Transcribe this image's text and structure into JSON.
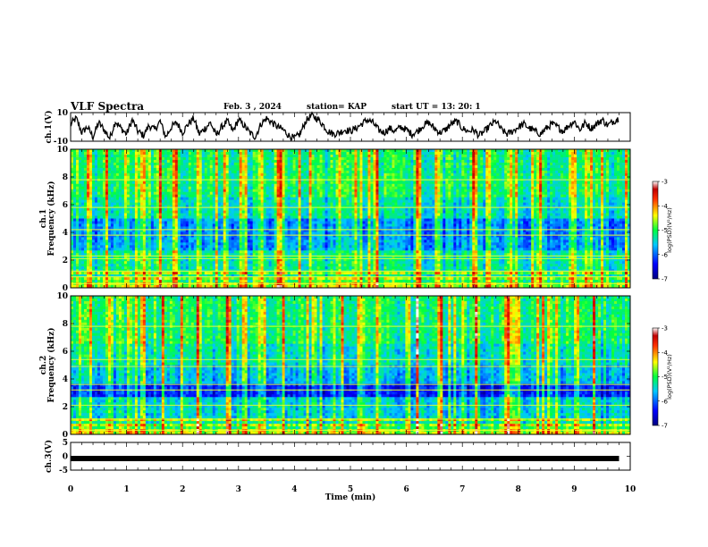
{
  "header": {
    "title": "VLF Spectra",
    "date": "Feb. 3 , 2024",
    "station": "station= KAP",
    "start": "start UT = 13: 20: 1"
  },
  "chart_data": [
    {
      "type": "line",
      "name": "waveform-ch1",
      "ylabel": "ch.1(V)",
      "ylim": [
        -10,
        10
      ],
      "yticks": [
        "10",
        "-10"
      ],
      "xlim": [
        0,
        10
      ],
      "x": [
        0.0,
        0.1,
        0.2,
        0.3,
        0.4,
        0.5,
        0.6,
        0.7,
        0.8,
        0.9,
        1.0,
        1.1,
        1.2,
        1.3,
        1.4,
        1.5,
        1.6,
        1.7,
        1.8,
        1.9,
        2.0,
        2.1,
        2.2,
        2.3,
        2.4,
        2.5,
        2.6,
        2.7,
        2.8,
        2.9,
        3.0,
        3.1,
        3.2,
        3.3,
        3.4,
        3.5,
        3.6,
        3.7,
        3.8,
        3.9,
        4.0,
        4.1,
        4.2,
        4.3,
        4.4,
        4.5,
        4.6,
        4.7,
        4.8,
        4.9,
        5.0,
        5.1,
        5.2,
        5.3,
        5.4,
        5.5,
        5.6,
        5.7,
        5.8,
        5.9,
        6.0,
        6.1,
        6.2,
        6.3,
        6.4,
        6.5,
        6.6,
        6.7,
        6.8,
        6.9,
        7.0,
        7.1,
        7.2,
        7.3,
        7.4,
        7.5,
        7.6,
        7.7,
        7.8,
        7.9,
        8.0,
        8.1,
        8.2,
        8.3,
        8.4,
        8.5,
        8.6,
        8.7,
        8.8,
        8.9,
        9.0,
        9.1,
        9.2,
        9.3,
        9.4,
        9.5,
        9.6,
        9.7,
        9.8
      ],
      "values": [
        2,
        6,
        -4,
        0,
        -7,
        3,
        -2,
        -8,
        4,
        -1,
        -5,
        5,
        -3,
        -6,
        1,
        -2,
        4,
        -7,
        0,
        3,
        -4,
        2,
        6,
        -5,
        -1,
        3,
        -6,
        0,
        4,
        -3,
        5,
        1,
        -4,
        -7,
        2,
        6,
        3,
        0,
        -2,
        -6,
        -8,
        -5,
        4,
        8,
        6,
        2,
        -3,
        -5,
        -4,
        -2,
        -3,
        -1,
        2,
        5,
        3,
        -2,
        -4,
        -1,
        -3,
        0,
        -2,
        -5,
        -3,
        1,
        3,
        -1,
        -4,
        -2,
        2,
        4,
        -1,
        -3,
        -2,
        -6,
        -3,
        1,
        4,
        -2,
        -5,
        -3,
        0,
        2,
        -1,
        -3,
        -5,
        -1,
        2,
        0,
        -3,
        1,
        4,
        -2,
        3,
        -1,
        2,
        5,
        1,
        4,
        6
      ]
    },
    {
      "type": "heatmap",
      "name": "spectrogram-ch1",
      "ylabel": "ch.1 Frequency (kHz)",
      "xlim": [
        0,
        10
      ],
      "ylim": [
        0,
        10
      ],
      "yticks": [
        "0",
        "2",
        "4",
        "6",
        "8",
        "10"
      ],
      "colorbar": {
        "label": "log(PSD)(V²/Hz)",
        "range": [
          -7,
          -3
        ],
        "ticks": [
          "-3",
          "-4",
          "-5",
          "-6",
          "-7"
        ]
      },
      "bursts_min": [
        0.3,
        0.65,
        1.0,
        1.25,
        1.6,
        1.9,
        2.3,
        2.75,
        3.05,
        3.4,
        3.75,
        4.3,
        4.8,
        5.1,
        5.45,
        6.2,
        6.55,
        7.2,
        7.85,
        7.95,
        8.4,
        9.0,
        9.3
      ]
    },
    {
      "type": "heatmap",
      "name": "spectrogram-ch2",
      "ylabel": "ch.2 Frequency (kHz)",
      "xlim": [
        0,
        10
      ],
      "ylim": [
        0,
        10
      ],
      "yticks": [
        "0",
        "2",
        "4",
        "6",
        "8",
        "10"
      ],
      "colorbar": {
        "label": "log(PSD)(V²/Hz)",
        "range": [
          -7,
          -3
        ],
        "ticks": [
          "-3",
          "-4",
          "-5",
          "-6",
          "-7"
        ]
      },
      "bursts_min": [
        0.35,
        0.7,
        1.05,
        1.3,
        1.65,
        2.0,
        2.3,
        2.8,
        3.1,
        3.45,
        3.8,
        4.35,
        4.85,
        5.15,
        5.5,
        6.2,
        6.6,
        7.25,
        7.85,
        7.95,
        8.45,
        9.05,
        9.35
      ]
    },
    {
      "type": "line",
      "name": "waveform-ch3",
      "ylabel": "ch.3(V)",
      "ylim": [
        -5,
        5
      ],
      "yticks": [
        "5",
        "0",
        "-5"
      ],
      "xlim": [
        0,
        10
      ],
      "x": [
        0,
        9.8
      ],
      "values": [
        -0.8,
        -0.8
      ],
      "xlabel": "Time (min)",
      "xticks": [
        "0",
        "1",
        "2",
        "3",
        "4",
        "5",
        "6",
        "7",
        "8",
        "9",
        "10"
      ]
    }
  ]
}
